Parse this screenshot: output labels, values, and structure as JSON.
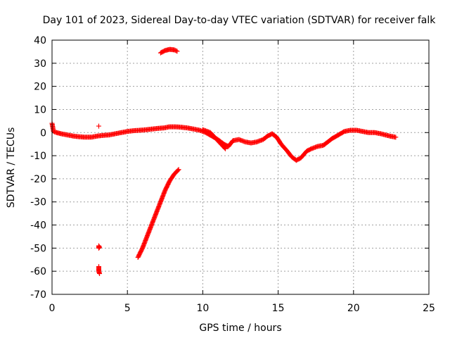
{
  "chart_data": {
    "type": "scatter",
    "title": "Day 101 of 2023, Sidereal Day-to-day VTEC variation (SDTVAR) for receiver falk",
    "xlabel": "GPS time / hours",
    "ylabel": "SDTVAR / TECUs",
    "xlim": [
      0,
      25
    ],
    "ylim": [
      -70,
      40
    ],
    "xticks": [
      0,
      5,
      10,
      15,
      20,
      25
    ],
    "yticks": [
      40,
      30,
      20,
      10,
      0,
      -10,
      -20,
      -30,
      -40,
      -50,
      -60,
      -70
    ],
    "grid": true,
    "marker": "+",
    "series": [
      {
        "name": "SDTVAR",
        "color": "#ff0000",
        "segments": [
          {
            "label": "main-trace",
            "points": [
              [
                0,
                4
              ],
              [
                0.1,
                0.5
              ],
              [
                0.3,
                0
              ],
              [
                0.6,
                -0.5
              ],
              [
                1,
                -1
              ],
              [
                1.4,
                -1.5
              ],
              [
                1.8,
                -1.8
              ],
              [
                2.2,
                -2
              ],
              [
                2.6,
                -2
              ],
              [
                3,
                -1.5
              ],
              [
                3.4,
                -1.2
              ],
              [
                3.8,
                -1
              ],
              [
                4.2,
                -0.5
              ],
              [
                4.6,
                0
              ],
              [
                5,
                0.5
              ],
              [
                5.4,
                0.8
              ],
              [
                5.8,
                1
              ],
              [
                6.2,
                1.2
              ],
              [
                6.6,
                1.5
              ],
              [
                7,
                1.8
              ],
              [
                7.4,
                2
              ],
              [
                7.8,
                2.5
              ],
              [
                8.2,
                2.5
              ],
              [
                8.6,
                2.3
              ],
              [
                9,
                2
              ],
              [
                9.4,
                1.5
              ],
              [
                9.8,
                1
              ],
              [
                10.2,
                0
              ],
              [
                10.6,
                -1.5
              ],
              [
                11,
                -3
              ],
              [
                11.4,
                -5
              ],
              [
                11.7,
                -6
              ],
              [
                12,
                -3.5
              ],
              [
                12.4,
                -3
              ],
              [
                12.8,
                -4
              ],
              [
                13.2,
                -4.5
              ],
              [
                13.6,
                -4
              ],
              [
                14,
                -3
              ],
              [
                14.3,
                -1.5
              ],
              [
                14.6,
                -0.5
              ],
              [
                14.9,
                -2
              ],
              [
                15.2,
                -5
              ],
              [
                15.6,
                -8
              ],
              [
                15.9,
                -10.5
              ],
              [
                16.2,
                -12
              ],
              [
                16.5,
                -11
              ],
              [
                16.9,
                -8
              ],
              [
                17.2,
                -7
              ],
              [
                17.6,
                -6
              ],
              [
                18,
                -5.5
              ],
              [
                18.3,
                -4
              ],
              [
                18.6,
                -2.5
              ],
              [
                19,
                -1
              ],
              [
                19.4,
                0.5
              ],
              [
                19.8,
                1
              ],
              [
                20.2,
                1
              ],
              [
                20.6,
                0.5
              ],
              [
                21,
                0
              ],
              [
                21.4,
                0
              ],
              [
                21.8,
                -0.5
              ],
              [
                22.4,
                -1.5
              ],
              [
                22.8,
                -2
              ]
            ]
          },
          {
            "label": "upper-branch",
            "points": [
              [
                10,
                1.2
              ],
              [
                10.5,
                0
              ],
              [
                11,
                -3.5
              ],
              [
                11.5,
                -7
              ]
            ]
          },
          {
            "label": "high-cluster",
            "points": [
              [
                7.2,
                34.5
              ],
              [
                7.5,
                35.5
              ],
              [
                7.8,
                36
              ],
              [
                8.1,
                35.8
              ],
              [
                8.3,
                35.2
              ]
            ]
          },
          {
            "label": "rising-trace",
            "points": [
              [
                5.7,
                -54
              ],
              [
                6,
                -50
              ],
              [
                6.3,
                -45
              ],
              [
                6.6,
                -40
              ],
              [
                6.9,
                -35
              ],
              [
                7.2,
                -30
              ],
              [
                7.5,
                -25
              ],
              [
                7.8,
                -21
              ],
              [
                8.1,
                -18
              ],
              [
                8.4,
                -16
              ]
            ]
          },
          {
            "label": "cluster-minus50",
            "points": [
              [
                3.1,
                -49
              ],
              [
                3.1,
                -50
              ],
              [
                3.15,
                -49.5
              ]
            ]
          },
          {
            "label": "cluster-minus60",
            "points": [
              [
                3.1,
                -58
              ],
              [
                3.1,
                -59
              ],
              [
                3.1,
                -60
              ],
              [
                3.15,
                -61
              ]
            ]
          },
          {
            "label": "isolated-point",
            "points": [
              [
                3.1,
                2.8
              ]
            ]
          }
        ]
      }
    ]
  }
}
